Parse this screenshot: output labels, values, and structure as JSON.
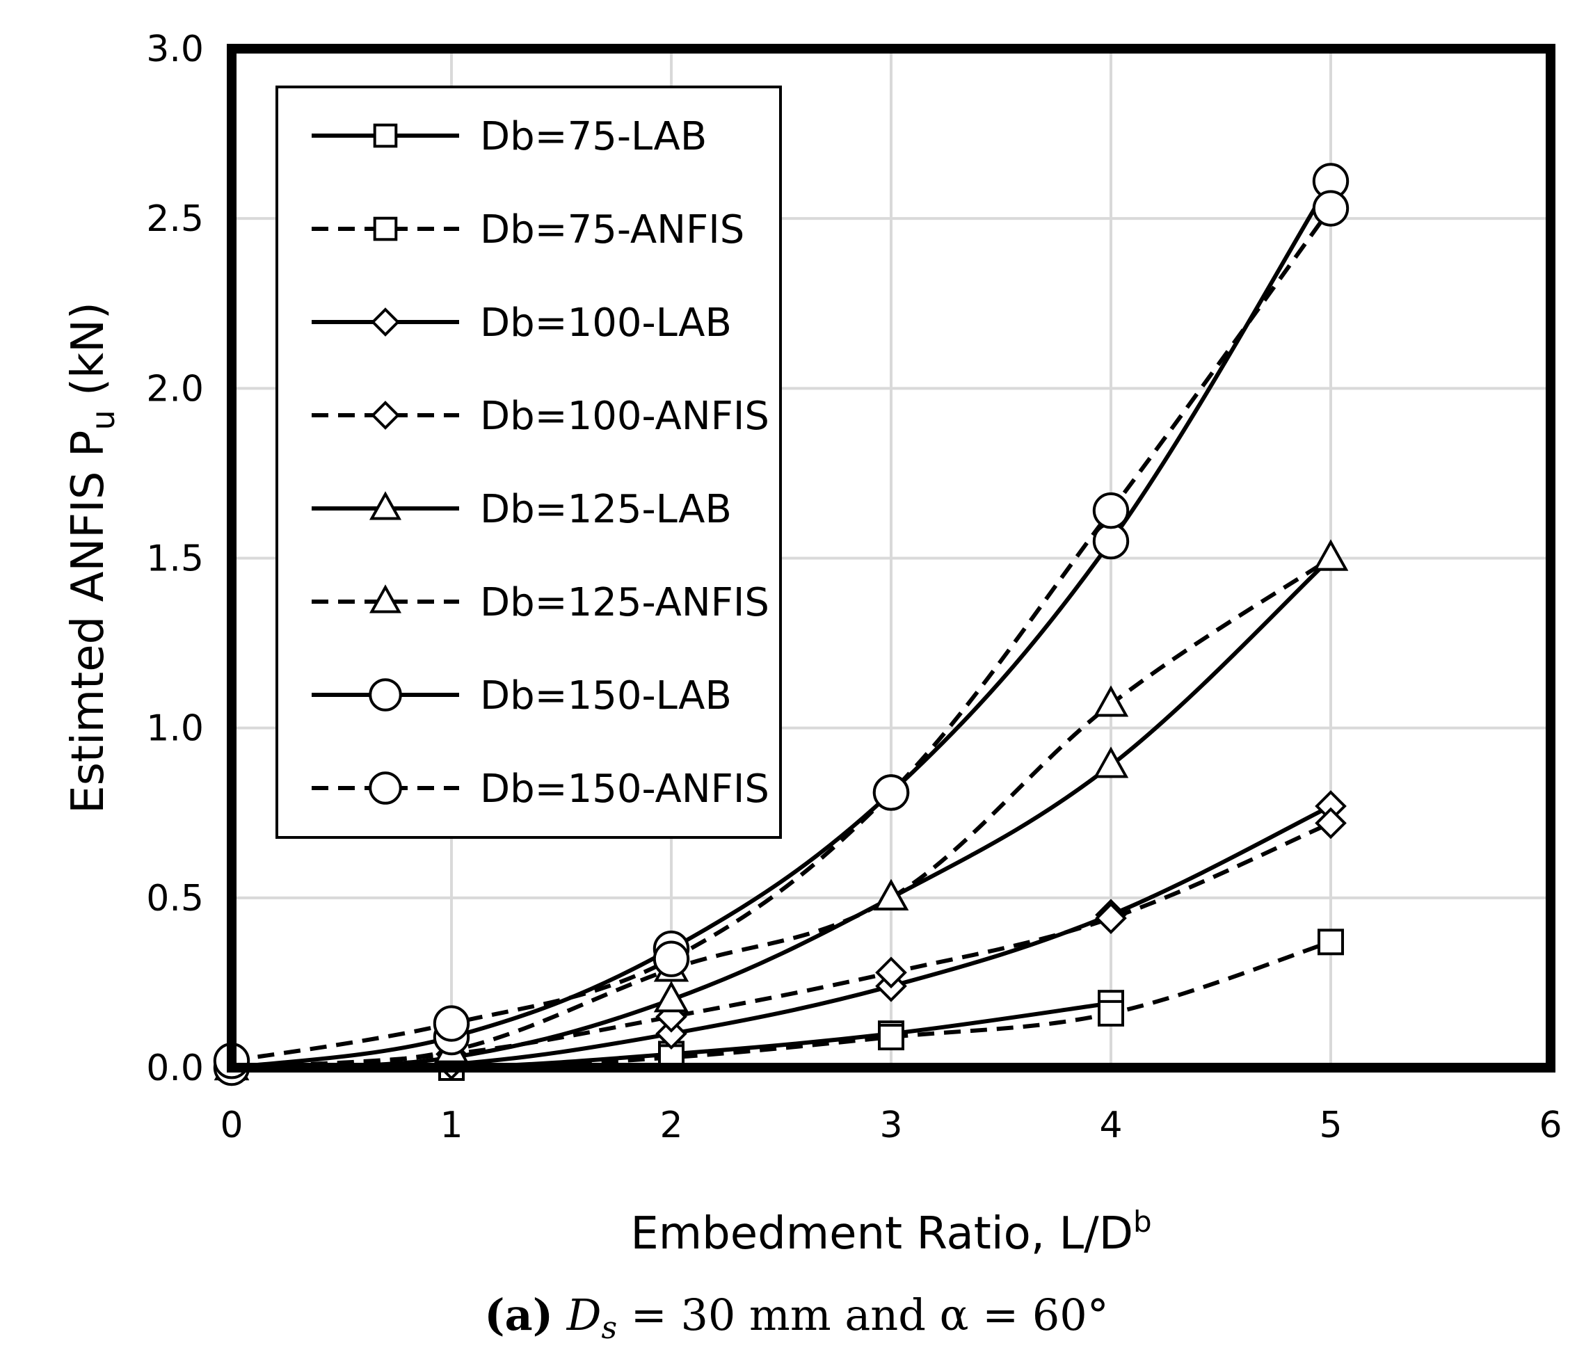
{
  "chart_data": {
    "type": "line",
    "xlabel": "Embedment Ratio, L/D",
    "xlabel_superscript": "b",
    "ylabel": "Estimted ANFIS  P",
    "ylabel_subscript": "u",
    "ylabel_unit": " (kN)",
    "xlim": [
      0,
      6
    ],
    "ylim": [
      0,
      3
    ],
    "x_ticks": [
      "0",
      "1",
      "2",
      "3",
      "4",
      "5",
      "6"
    ],
    "y_ticks": [
      "0.0",
      "0.5",
      "1.0",
      "1.5",
      "2.0",
      "2.5",
      "3.0"
    ],
    "grid": true,
    "legend_position": "top-left",
    "series": [
      {
        "name": "Db=75-LAB",
        "marker": "square",
        "dash": "solid",
        "x": [
          0,
          1,
          2,
          3,
          4
        ],
        "y": [
          0.0,
          0.0,
          0.04,
          0.1,
          0.19
        ]
      },
      {
        "name": "Db=75-ANFIS",
        "marker": "square",
        "dash": "dashed",
        "x": [
          0,
          1,
          2,
          3,
          4,
          5
        ],
        "y": [
          0.0,
          0.0,
          0.03,
          0.09,
          0.16,
          0.37
        ]
      },
      {
        "name": "Db=100-LAB",
        "marker": "diamond",
        "dash": "solid",
        "x": [
          0,
          1,
          2,
          3,
          4,
          5
        ],
        "y": [
          0.0,
          0.01,
          0.1,
          0.24,
          0.45,
          0.77
        ]
      },
      {
        "name": "Db=100-ANFIS",
        "marker": "diamond",
        "dash": "dashed",
        "x": [
          0,
          1,
          2,
          3,
          4,
          5
        ],
        "y": [
          0.0,
          0.04,
          0.15,
          0.28,
          0.44,
          0.72
        ]
      },
      {
        "name": "Db=125-LAB",
        "marker": "triangle",
        "dash": "solid",
        "x": [
          0,
          1,
          2,
          3,
          4,
          5
        ],
        "y": [
          0.0,
          0.03,
          0.2,
          0.5,
          0.89,
          1.5
        ]
      },
      {
        "name": "Db=125-ANFIS",
        "marker": "triangle",
        "dash": "dashed",
        "x": [
          0,
          1,
          2,
          3,
          4,
          5
        ],
        "y": [
          0.0,
          0.05,
          0.29,
          0.5,
          1.07,
          1.5
        ]
      },
      {
        "name": "Db=150-LAB",
        "marker": "circle",
        "dash": "solid",
        "x": [
          0,
          1,
          2,
          3,
          4,
          5
        ],
        "y": [
          0.0,
          0.09,
          0.35,
          0.81,
          1.55,
          2.61
        ]
      },
      {
        "name": "Db=150-ANFIS",
        "marker": "circle",
        "dash": "dashed",
        "x": [
          0,
          1,
          2,
          3,
          4,
          5
        ],
        "y": [
          0.02,
          0.13,
          0.32,
          0.81,
          1.64,
          2.53
        ]
      }
    ]
  },
  "caption": {
    "label": "(a)",
    "text": " D",
    "subscript": "s",
    "rest": " = 30 mm and α = 60°"
  }
}
